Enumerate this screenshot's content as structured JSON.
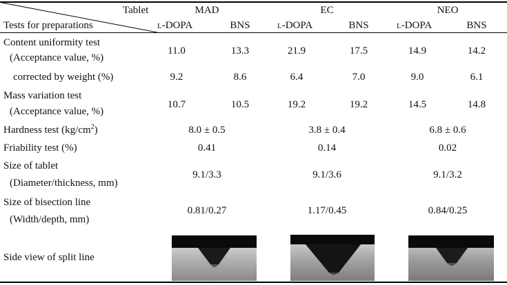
{
  "header": {
    "corner_top": "Tablet",
    "corner_bottom": "Tests for preparations",
    "groups": [
      "MAD",
      "EC",
      "NEO"
    ],
    "sub_prefix": "L",
    "sub_ldopa": "-DOPA",
    "sub_bns": "BNS"
  },
  "rows": {
    "content_uniformity": {
      "label_1": "Content uniformity test",
      "label_2": "(Acceptance value, %)",
      "values": [
        "11.0",
        "13.3",
        "21.9",
        "17.5",
        "14.9",
        "14.2"
      ]
    },
    "corrected": {
      "label": "corrected by weight (%)",
      "values": [
        "9.2",
        "8.6",
        "6.4",
        "7.0",
        "9.0",
        "6.1"
      ]
    },
    "mass_variation": {
      "label_1": "Mass variation test",
      "label_2": "(Acceptance value, %)",
      "values": [
        "10.7",
        "10.5",
        "19.2",
        "19.2",
        "14.5",
        "14.8"
      ]
    },
    "hardness": {
      "label": "Hardness test (kg/cm",
      "label_sup": "2",
      "label_end": ")",
      "values": [
        "8.0 ± 0.5",
        "3.8 ± 0.4",
        "6.8 ± 0.6"
      ]
    },
    "friability": {
      "label": "Friability test (%)",
      "values": [
        "0.41",
        "0.14",
        "0.02"
      ]
    },
    "size": {
      "label_1": "Size of tablet",
      "label_2": "(Diameter/thickness, mm)",
      "values": [
        "9.1/3.3",
        "9.1/3.6",
        "9.1/3.2"
      ]
    },
    "bisection": {
      "label_1": "Size of bisection line",
      "label_2": "(Width/depth, mm)",
      "values": [
        "0.81/0.27",
        "1.17/0.45",
        "0.84/0.25"
      ]
    },
    "side_view": {
      "label": "Side view of split line"
    }
  }
}
